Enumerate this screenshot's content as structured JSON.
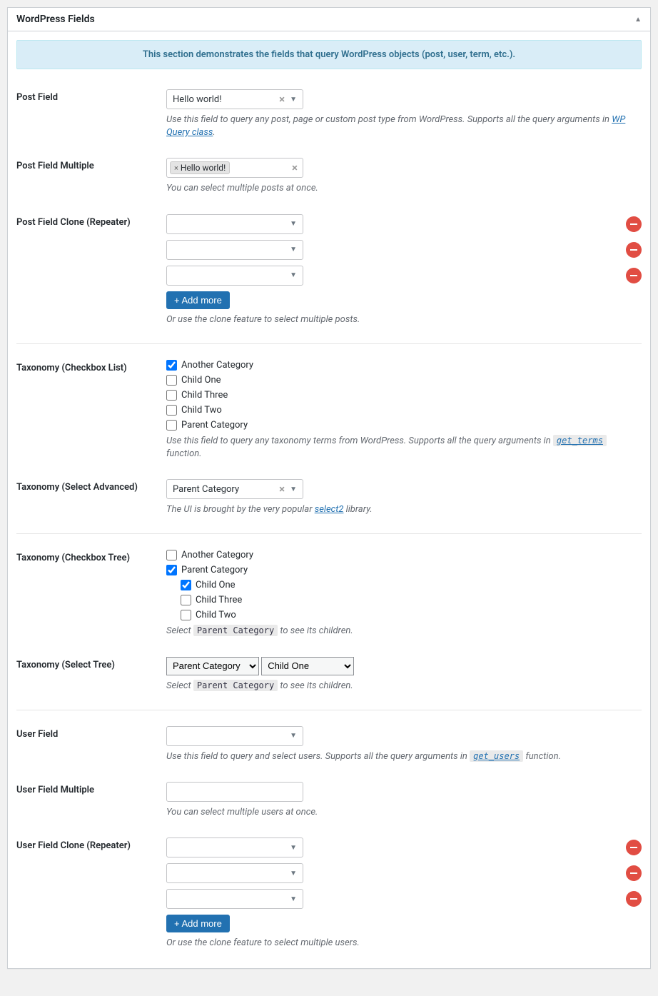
{
  "panel": {
    "title": "WordPress Fields"
  },
  "notice": "This section demonstrates the fields that query WordPress objects (post, user, term, etc.).",
  "post_field": {
    "label": "Post Field",
    "value": "Hello world!",
    "desc_pre": "Use this field to query any post, page or custom post type from WordPress. Supports all the query arguments in ",
    "desc_link": "WP Query class",
    "desc_post": "."
  },
  "post_field_multiple": {
    "label": "Post Field Multiple",
    "chip": "Hello world!",
    "desc": "You can select multiple posts at once."
  },
  "post_field_clone": {
    "label": "Post Field Clone (Repeater)",
    "add_more": "+ Add more",
    "desc": "Or use the clone feature to select multiple posts."
  },
  "taxonomy_checkbox": {
    "label": "Taxonomy (Checkbox List)",
    "options": [
      {
        "label": "Another Category",
        "checked": true
      },
      {
        "label": "Child One",
        "checked": false
      },
      {
        "label": "Child Three",
        "checked": false
      },
      {
        "label": "Child Two",
        "checked": false
      },
      {
        "label": "Parent Category",
        "checked": false
      }
    ],
    "desc_pre": "Use this field to query any taxonomy terms from WordPress. Supports all the query arguments in ",
    "desc_link": "get_terms",
    "desc_post": " function."
  },
  "taxonomy_select_adv": {
    "label": "Taxonomy (Select Advanced)",
    "value": "Parent Category",
    "desc_pre": "The UI is brought by the very popular ",
    "desc_link": "select2",
    "desc_post": " library."
  },
  "taxonomy_tree": {
    "label": "Taxonomy (Checkbox Tree)",
    "root": [
      {
        "label": "Another Category",
        "checked": false,
        "children": []
      },
      {
        "label": "Parent Category",
        "checked": true,
        "children": [
          {
            "label": "Child One",
            "checked": true
          },
          {
            "label": "Child Three",
            "checked": false
          },
          {
            "label": "Child Two",
            "checked": false
          }
        ]
      }
    ],
    "desc_pre": "Select ",
    "desc_kbd": "Parent Category",
    "desc_post": " to see its children."
  },
  "taxonomy_select_tree": {
    "label": "Taxonomy (Select Tree)",
    "sel1": "Parent Category",
    "sel2": "Child One",
    "desc_pre": "Select ",
    "desc_kbd": "Parent Category",
    "desc_post": " to see its children."
  },
  "user_field": {
    "label": "User Field",
    "desc_pre": "Use this field to query and select users. Supports all the query arguments in ",
    "desc_link": "get_users",
    "desc_post": " function."
  },
  "user_field_multiple": {
    "label": "User Field Multiple",
    "desc": "You can select multiple users at once."
  },
  "user_field_clone": {
    "label": "User Field Clone (Repeater)",
    "add_more": "+ Add more",
    "desc": "Or use the clone feature to select multiple users."
  },
  "colors": {
    "notice_bg": "#d9edf7",
    "notice_text": "#31708f",
    "primary": "#2271b1",
    "danger": "#e14d43"
  }
}
